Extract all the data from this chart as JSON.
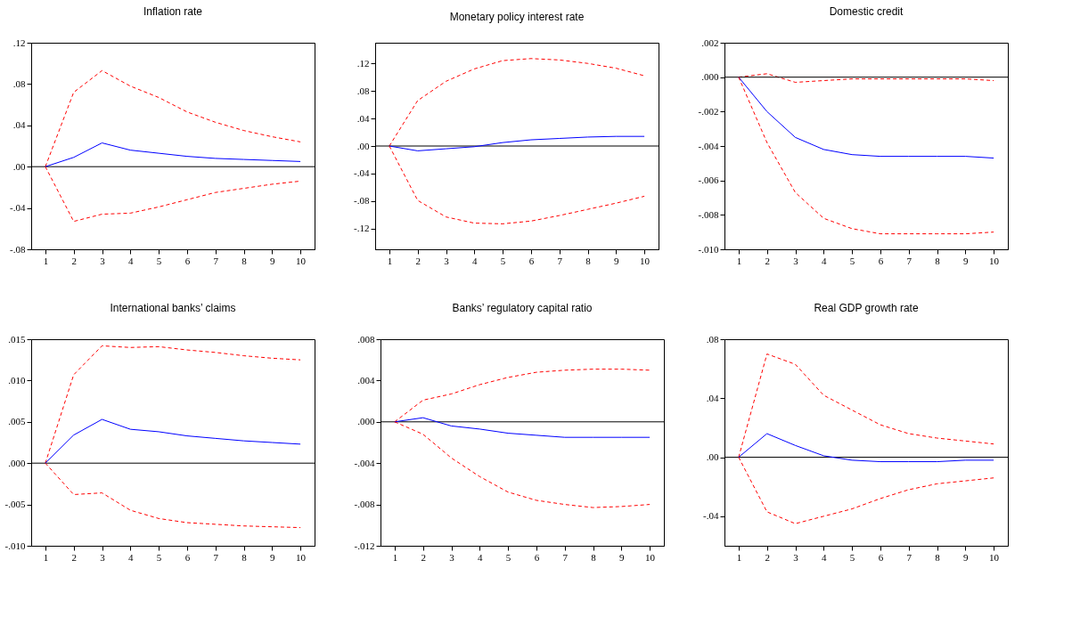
{
  "chart_data": [
    {
      "type": "line",
      "title": "Inflation rate",
      "categories": [
        "1",
        "2",
        "3",
        "4",
        "5",
        "6",
        "7",
        "8",
        "9",
        "10"
      ],
      "ylim": [
        -0.08,
        0.12
      ],
      "yticks": [
        {
          "value": -0.08,
          "label": "-.08"
        },
        {
          "value": -0.04,
          "label": "-.04"
        },
        {
          "value": 0,
          "label": ".00"
        },
        {
          "value": 0.04,
          "label": ".04"
        },
        {
          "value": 0.08,
          "label": ".08"
        },
        {
          "value": 0.12,
          "label": ".12"
        }
      ],
      "ref_lines": [
        {
          "axis": "y",
          "value": 0,
          "color": "#000000"
        }
      ],
      "series": [
        {
          "color": "#ff0000",
          "line_style": "dashed",
          "values": [
            0,
            0.072,
            0.093,
            0.078,
            0.067,
            0.053,
            0.043,
            0.035,
            0.029,
            0.024
          ]
        },
        {
          "color": "#0000ff",
          "line_style": "solid",
          "values": [
            0,
            0.009,
            0.023,
            0.016,
            0.013,
            0.01,
            0.008,
            0.007,
            0.006,
            0.005
          ]
        },
        {
          "color": "#ff0000",
          "line_style": "dashed",
          "values": [
            0,
            -0.053,
            -0.046,
            -0.045,
            -0.039,
            -0.032,
            -0.025,
            -0.021,
            -0.017,
            -0.014
          ]
        }
      ]
    },
    {
      "type": "line",
      "title": "Monetary policy interest rate",
      "categories": [
        "1",
        "2",
        "3",
        "4",
        "5",
        "6",
        "7",
        "8",
        "9",
        "10"
      ],
      "ylim": [
        -0.15,
        0.15
      ],
      "yticks": [
        {
          "value": -0.12,
          "label": "-.12"
        },
        {
          "value": -0.08,
          "label": "-.08"
        },
        {
          "value": -0.04,
          "label": "-.04"
        },
        {
          "value": 0,
          "label": ".00"
        },
        {
          "value": 0.04,
          "label": ".04"
        },
        {
          "value": 0.08,
          "label": ".08"
        },
        {
          "value": 0.12,
          "label": ".12"
        }
      ],
      "ref_lines": [
        {
          "axis": "y",
          "value": 0,
          "color": "#000000"
        }
      ],
      "series": [
        {
          "color": "#ff0000",
          "line_style": "dashed",
          "values": [
            0,
            0.066,
            0.094,
            0.112,
            0.124,
            0.127,
            0.125,
            0.12,
            0.113,
            0.102
          ]
        },
        {
          "color": "#0000ff",
          "line_style": "solid",
          "values": [
            0,
            -0.007,
            -0.004,
            -0.001,
            0.005,
            0.009,
            0.011,
            0.013,
            0.014,
            0.014
          ]
        },
        {
          "color": "#ff0000",
          "line_style": "dashed",
          "values": [
            0,
            -0.079,
            -0.103,
            -0.112,
            -0.113,
            -0.109,
            -0.101,
            -0.092,
            -0.083,
            -0.073
          ]
        }
      ]
    },
    {
      "type": "line",
      "title": "Domestic credit",
      "categories": [
        "1",
        "2",
        "3",
        "4",
        "5",
        "6",
        "7",
        "8",
        "9",
        "10"
      ],
      "ylim": [
        -0.01,
        0.002
      ],
      "yticks": [
        {
          "value": -0.01,
          "label": "-.010"
        },
        {
          "value": -0.008,
          "label": "-.008"
        },
        {
          "value": -0.006,
          "label": "-.006"
        },
        {
          "value": -0.004,
          "label": "-.004"
        },
        {
          "value": -0.002,
          "label": "-.002"
        },
        {
          "value": 0,
          "label": ".000"
        },
        {
          "value": 0.002,
          "label": ".002"
        }
      ],
      "ref_lines": [
        {
          "axis": "y",
          "value": 0,
          "color": "#000000"
        }
      ],
      "series": [
        {
          "color": "#ff0000",
          "line_style": "dashed",
          "values": [
            0,
            0.0002,
            -0.0003,
            -0.0002,
            -0.0001,
            -0.0001,
            -0.0001,
            -0.0001,
            -0.0001,
            -0.0002
          ]
        },
        {
          "color": "#0000ff",
          "line_style": "solid",
          "values": [
            0,
            -0.002,
            -0.0035,
            -0.0042,
            -0.0045,
            -0.0046,
            -0.0046,
            -0.0046,
            -0.0046,
            -0.0047
          ]
        },
        {
          "color": "#ff0000",
          "line_style": "dashed",
          "values": [
            0,
            -0.0038,
            -0.0067,
            -0.0082,
            -0.0088,
            -0.0091,
            -0.0091,
            -0.0091,
            -0.0091,
            -0.009
          ]
        }
      ]
    },
    {
      "type": "line",
      "title": "International banks’ claims",
      "categories": [
        "1",
        "2",
        "3",
        "4",
        "5",
        "6",
        "7",
        "8",
        "9",
        "10"
      ],
      "ylim": [
        -0.01,
        0.015
      ],
      "yticks": [
        {
          "value": -0.01,
          "label": "-.010"
        },
        {
          "value": -0.005,
          "label": "-.005"
        },
        {
          "value": 0,
          "label": ".000"
        },
        {
          "value": 0.005,
          "label": ".005"
        },
        {
          "value": 0.01,
          "label": ".010"
        },
        {
          "value": 0.015,
          "label": ".015"
        }
      ],
      "ref_lines": [
        {
          "axis": "y",
          "value": 0,
          "color": "#000000"
        }
      ],
      "series": [
        {
          "color": "#ff0000",
          "line_style": "dashed",
          "values": [
            0,
            0.0107,
            0.0142,
            0.014,
            0.0141,
            0.0137,
            0.0134,
            0.013,
            0.0127,
            0.0125
          ]
        },
        {
          "color": "#0000ff",
          "line_style": "solid",
          "values": [
            0,
            0.0034,
            0.0053,
            0.0041,
            0.0038,
            0.0033,
            0.003,
            0.0027,
            0.0025,
            0.0023
          ]
        },
        {
          "color": "#ff0000",
          "line_style": "dashed",
          "values": [
            0,
            -0.0038,
            -0.0036,
            -0.0057,
            -0.0067,
            -0.0072,
            -0.0074,
            -0.0076,
            -0.0077,
            -0.0078
          ]
        }
      ]
    },
    {
      "type": "line",
      "title": "Banks’ regulatory capital ratio",
      "categories": [
        "1",
        "2",
        "3",
        "4",
        "5",
        "6",
        "7",
        "8",
        "9",
        "10"
      ],
      "ylim": [
        -0.012,
        0.008
      ],
      "yticks": [
        {
          "value": -0.012,
          "label": "-.012"
        },
        {
          "value": -0.008,
          "label": "-.008"
        },
        {
          "value": -0.004,
          "label": "-.004"
        },
        {
          "value": 0,
          "label": ".000"
        },
        {
          "value": 0.004,
          "label": ".004"
        },
        {
          "value": 0.008,
          "label": ".008"
        }
      ],
      "ref_lines": [
        {
          "axis": "y",
          "value": 0,
          "color": "#000000"
        }
      ],
      "series": [
        {
          "color": "#ff0000",
          "line_style": "dashed",
          "values": [
            0,
            0.0021,
            0.0027,
            0.0036,
            0.0043,
            0.0048,
            0.005,
            0.0051,
            0.0051,
            0.005
          ]
        },
        {
          "color": "#0000ff",
          "line_style": "solid",
          "values": [
            0,
            0.0004,
            -0.0004,
            -0.0007,
            -0.0011,
            -0.0013,
            -0.0015,
            -0.0015,
            -0.0015,
            -0.0015
          ]
        },
        {
          "color": "#ff0000",
          "line_style": "dashed",
          "values": [
            0,
            -0.0012,
            -0.0035,
            -0.0053,
            -0.0068,
            -0.0076,
            -0.008,
            -0.0083,
            -0.0082,
            -0.008
          ]
        }
      ]
    },
    {
      "type": "line",
      "title": "Real GDP growth rate",
      "categories": [
        "1",
        "2",
        "3",
        "4",
        "5",
        "6",
        "7",
        "8",
        "9",
        "10"
      ],
      "ylim": [
        -0.06,
        0.08
      ],
      "yticks": [
        {
          "value": -0.04,
          "label": "-.04"
        },
        {
          "value": 0,
          "label": ".00"
        },
        {
          "value": 0.04,
          "label": ".04"
        },
        {
          "value": 0.08,
          "label": ".08"
        }
      ],
      "ref_lines": [
        {
          "axis": "y",
          "value": 0,
          "color": "#000000"
        }
      ],
      "series": [
        {
          "color": "#ff0000",
          "line_style": "dashed",
          "values": [
            0,
            0.07,
            0.063,
            0.042,
            0.032,
            0.022,
            0.016,
            0.013,
            0.011,
            0.009
          ]
        },
        {
          "color": "#0000ff",
          "line_style": "solid",
          "values": [
            0,
            0.016,
            0.008,
            0.001,
            -0.002,
            -0.003,
            -0.003,
            -0.003,
            -0.002,
            -0.002
          ]
        },
        {
          "color": "#ff0000",
          "line_style": "dashed",
          "values": [
            0,
            -0.037,
            -0.045,
            -0.04,
            -0.035,
            -0.028,
            -0.022,
            -0.018,
            -0.016,
            -0.014
          ]
        }
      ]
    }
  ]
}
